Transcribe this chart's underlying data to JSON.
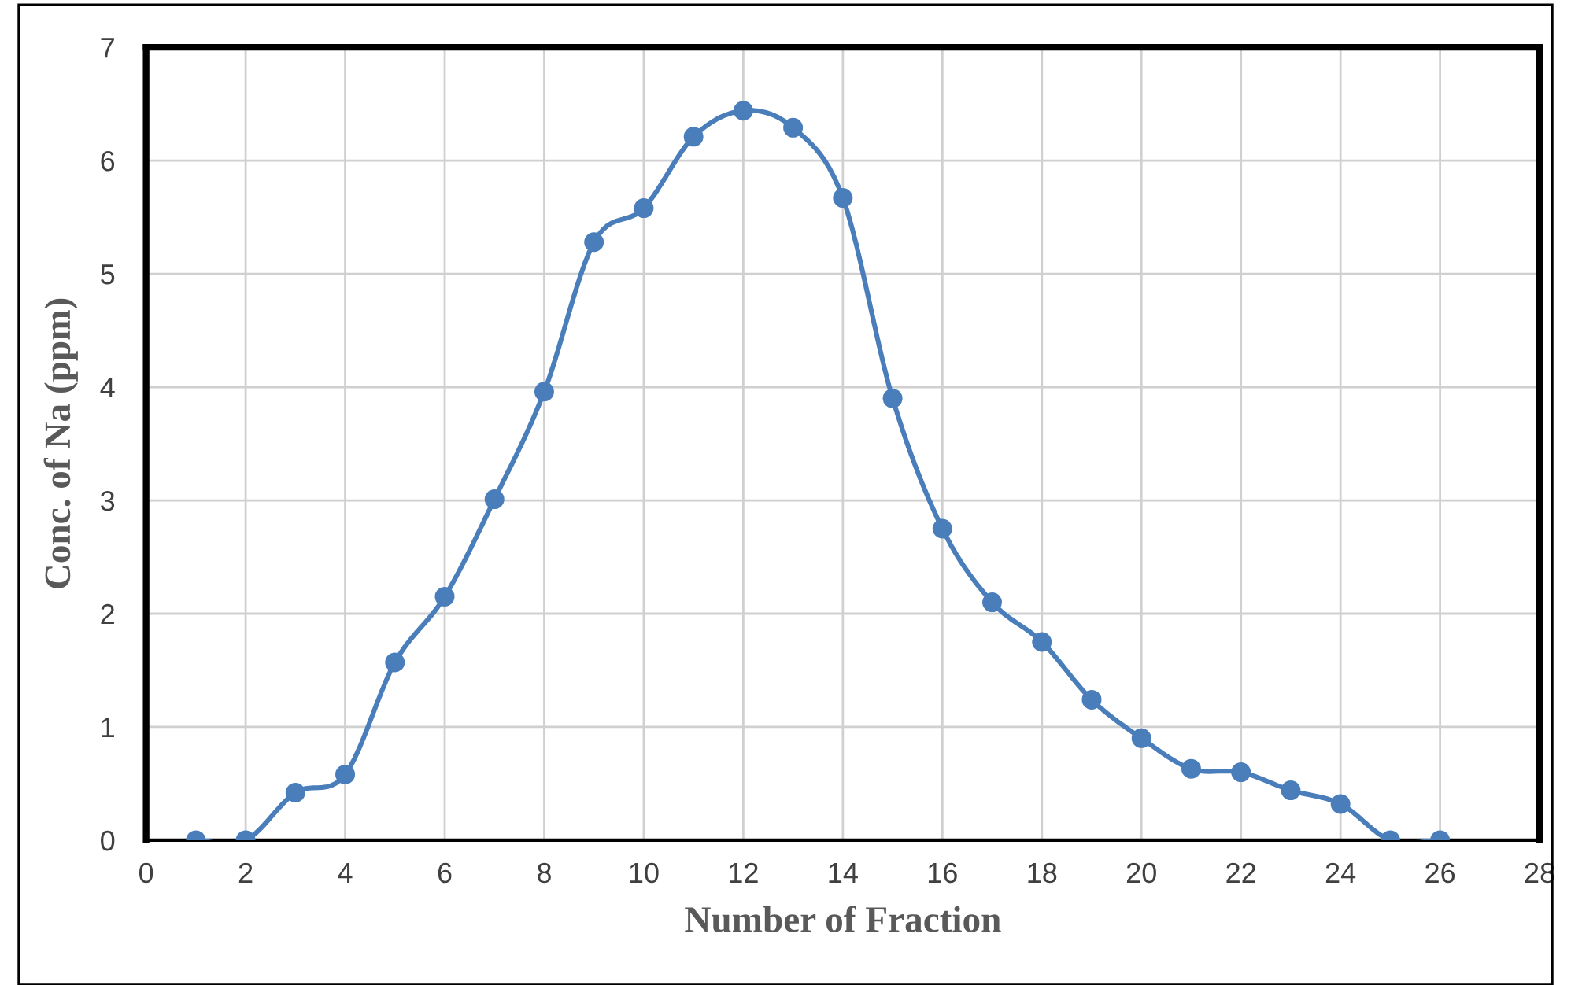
{
  "chart_data": {
    "type": "line",
    "xlabel": "Number of Fraction",
    "ylabel": "Conc. of Na (ppm)",
    "x": [
      1,
      2,
      3,
      4,
      5,
      6,
      7,
      8,
      9,
      10,
      11,
      12,
      13,
      14,
      15,
      16,
      17,
      18,
      19,
      20,
      21,
      22,
      23,
      24,
      25,
      26
    ],
    "series": [
      {
        "color": "#4a7ebb",
        "values": [
          0,
          0,
          0.42,
          0.58,
          1.57,
          2.15,
          3.01,
          3.96,
          5.28,
          5.58,
          6.21,
          6.44,
          6.29,
          5.67,
          3.9,
          2.75,
          2.1,
          1.75,
          1.24,
          0.9,
          0.63,
          0.6,
          0.44,
          0.32,
          0,
          0
        ]
      }
    ],
    "xlim": [
      0,
      28
    ],
    "xticks": [
      0,
      2,
      4,
      6,
      8,
      10,
      12,
      14,
      16,
      18,
      20,
      22,
      24,
      26,
      28
    ],
    "ylim": [
      0,
      7
    ],
    "yticks": [
      0,
      1,
      2,
      3,
      4,
      5,
      6,
      7
    ],
    "grid": true,
    "marker": "circle",
    "line_style": "solid",
    "legend": false
  }
}
